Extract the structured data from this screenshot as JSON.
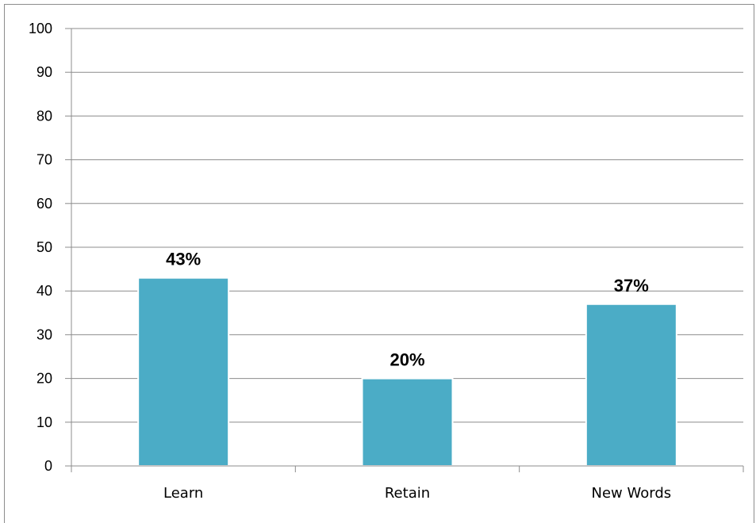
{
  "chart_data": {
    "type": "bar",
    "categories": [
      "Learn",
      "Retain",
      "New Words"
    ],
    "values": [
      43,
      20,
      37
    ],
    "data_labels": [
      "43%",
      "20%",
      "37%"
    ],
    "title": "",
    "xlabel": "",
    "ylabel": "",
    "ylim": [
      0,
      100
    ],
    "yticks": [
      0,
      10,
      20,
      30,
      40,
      50,
      60,
      70,
      80,
      90,
      100
    ],
    "grid": true,
    "legend": "none",
    "colors": {
      "bar": "#4bacc6",
      "bar_edge": "#ffffff",
      "grid": "#8c8c8c"
    }
  }
}
